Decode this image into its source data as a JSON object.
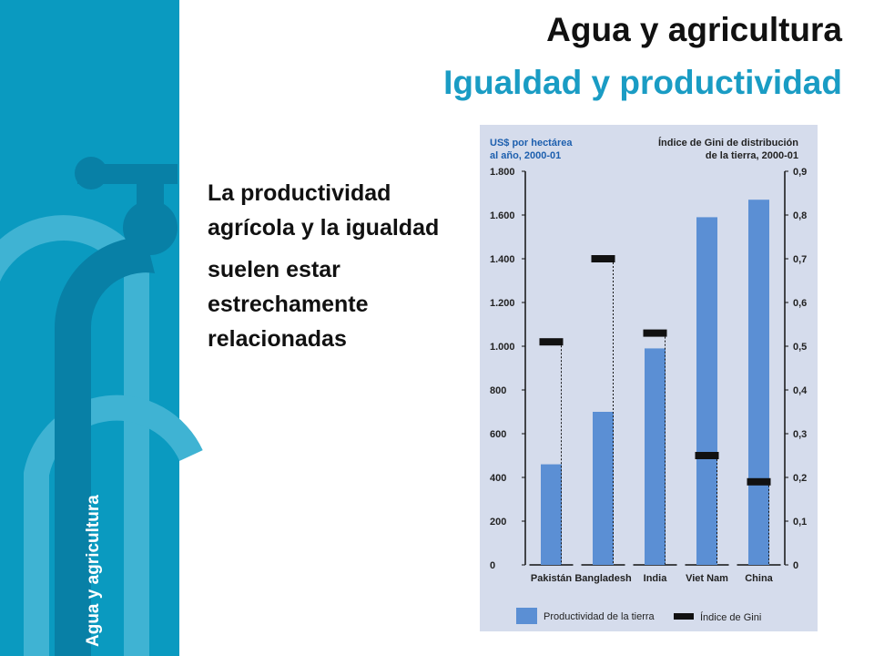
{
  "slide": {
    "title": "Agua y agricultura",
    "subtitle": "Igualdad y productividad",
    "body": [
      "La productividad agrícola y la igualdad",
      "suelen estar estrechamente relacionadas"
    ],
    "sidebar": "Agua y agricultura"
  },
  "chart_data": {
    "type": "bar",
    "ylabel": [
      "US$ por hectárea",
      "al año, 2000-01"
    ],
    "y2label": [
      "Índice de Gini de distribución",
      "de la tierra, 2000-01"
    ],
    "categories": [
      "Pakistán",
      "Bangladesh",
      "India",
      "Viet Nam",
      "China"
    ],
    "series": [
      {
        "name": "Productividad de la tierra",
        "color": "#5b8fd4",
        "values": [
          460,
          700,
          990,
          1590,
          1670
        ]
      },
      {
        "name": "Índice de Gini",
        "color": "#111111",
        "axis": "y2",
        "values": [
          0.51,
          0.7,
          0.53,
          0.25,
          0.19
        ]
      }
    ],
    "ylim": [
      0,
      1800
    ],
    "yticks": [
      0,
      200,
      400,
      600,
      800,
      {
        "value": 1000,
        "label": "1.000"
      },
      {
        "value": 1200,
        "label": "1.200"
      },
      {
        "value": 1400,
        "label": "1.400"
      },
      {
        "value": 1600,
        "label": "1.600"
      },
      {
        "value": 1800,
        "label": "1.800"
      }
    ],
    "y2lim": [
      0,
      0.9
    ],
    "y2ticks": [
      0,
      {
        "value": 0.1,
        "label": "0,1"
      },
      {
        "value": 0.2,
        "label": "0,2"
      },
      {
        "value": 0.3,
        "label": "0,3"
      },
      {
        "value": 0.4,
        "label": "0,4"
      },
      {
        "value": 0.5,
        "label": "0,5"
      },
      {
        "value": 0.6,
        "label": "0,6"
      },
      {
        "value": 0.7,
        "label": "0,7"
      },
      {
        "value": 0.8,
        "label": "0,8"
      },
      {
        "value": 0.9,
        "label": "0,9"
      }
    ]
  }
}
